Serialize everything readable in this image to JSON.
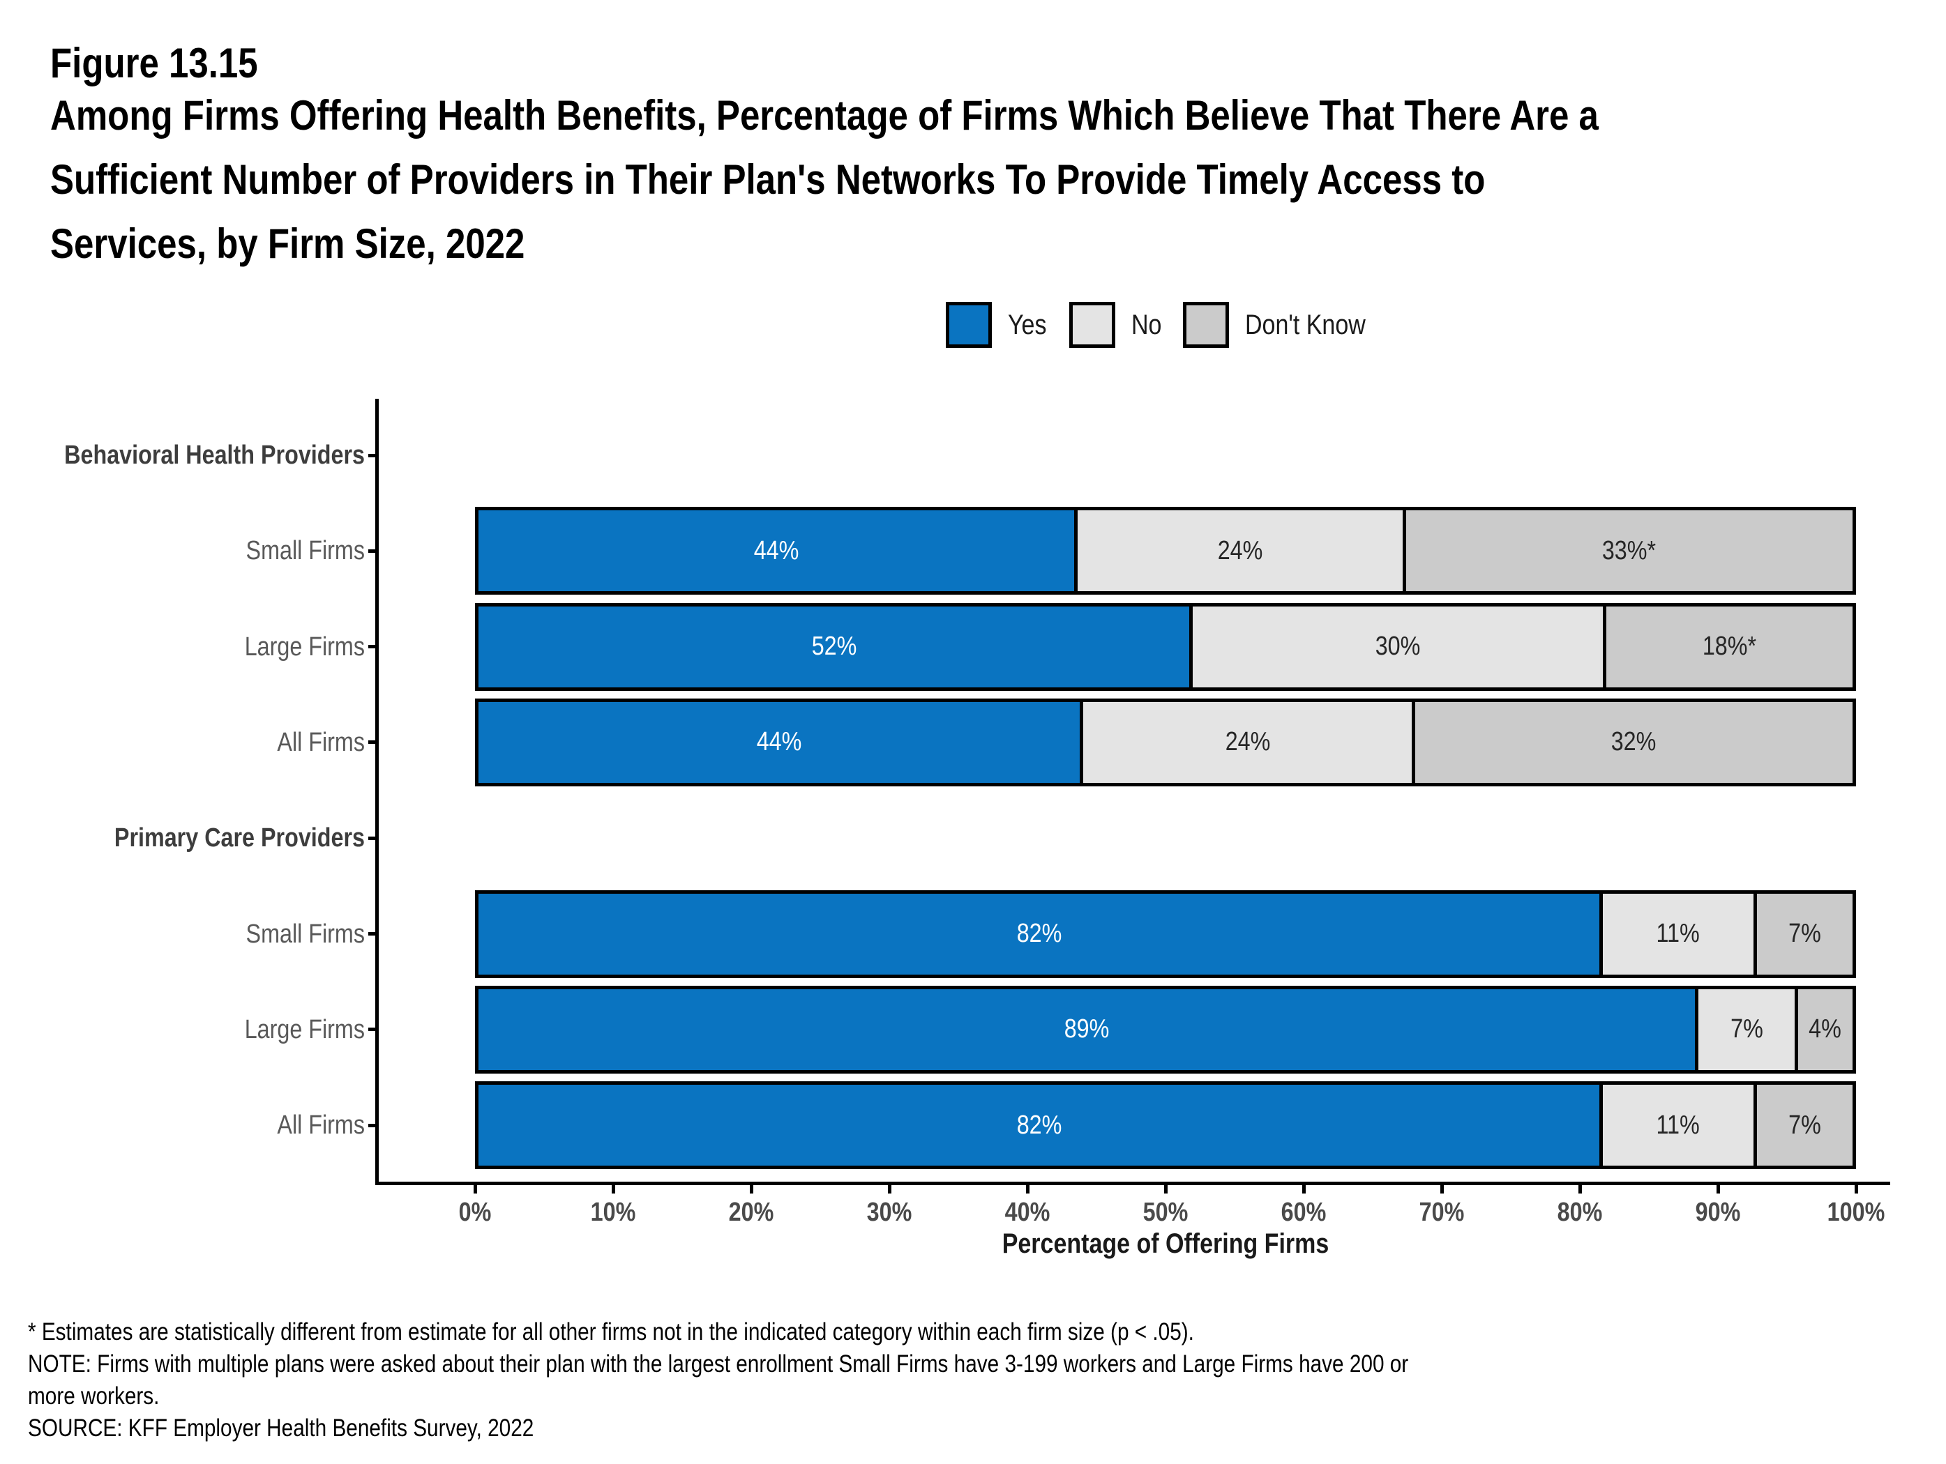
{
  "figure": {
    "label": "Figure 13.15",
    "title_lines": [
      "Among Firms Offering Health Benefits, Percentage of Firms Which Believe That There Are a",
      "Sufficient Number of Providers in Their Plan's Networks To Provide Timely Access to",
      "Services, by Firm Size, 2022"
    ]
  },
  "legend": {
    "items": [
      {
        "label": "Yes",
        "color": "#0A74C1",
        "text_color": "#ffffff"
      },
      {
        "label": "No",
        "color": "#E4E4E4",
        "text_color": "#262626"
      },
      {
        "label": "Don't Know",
        "color": "#CBCBCB",
        "text_color": "#262626"
      }
    ]
  },
  "chart_data": {
    "type": "bar",
    "orientation": "horizontal",
    "stacked": true,
    "title": "Among Firms Offering Health Benefits, Percentage of Firms Which Believe That There Are a Sufficient Number of Providers in Their Plan's Networks To Provide Timely Access to Services, by Firm Size, 2022",
    "xlabel": "Percentage of Offering Firms",
    "ylabel": "",
    "xlim": [
      0,
      100
    ],
    "grid": false,
    "legend_position": "top",
    "series_names": [
      "Yes",
      "No",
      "Don't Know"
    ],
    "x_ticks": [
      "0%",
      "10%",
      "20%",
      "30%",
      "40%",
      "50%",
      "60%",
      "70%",
      "80%",
      "90%",
      "100%"
    ],
    "rows": [
      {
        "label": "Behavioral Health Providers",
        "header": true
      },
      {
        "label": "Small Firms",
        "values": [
          44,
          24,
          33
        ],
        "value_labels": [
          "44%",
          "24%",
          "33%*"
        ]
      },
      {
        "label": "Large Firms",
        "values": [
          52,
          30,
          18
        ],
        "value_labels": [
          "52%",
          "30%",
          "18%*"
        ]
      },
      {
        "label": "All Firms",
        "values": [
          44,
          24,
          32
        ],
        "value_labels": [
          "44%",
          "24%",
          "32%"
        ]
      },
      {
        "label": "Primary Care Providers",
        "header": true
      },
      {
        "label": "Small Firms",
        "values": [
          82,
          11,
          7
        ],
        "value_labels": [
          "82%",
          "11%",
          "7%"
        ]
      },
      {
        "label": "Large Firms",
        "values": [
          89,
          7,
          4
        ],
        "value_labels": [
          "89%",
          "7%",
          "4%"
        ]
      },
      {
        "label": "All Firms",
        "values": [
          82,
          11,
          7
        ],
        "value_labels": [
          "82%",
          "11%",
          "7%"
        ]
      }
    ]
  },
  "footnotes": {
    "lines": [
      "* Estimates are statistically different from estimate for all other firms not in the indicated category within each firm size (p < .05).",
      "NOTE: Firms with multiple plans were asked about their plan with the largest enrollment Small Firms have 3-199 workers and Large Firms have 200 or",
      "more workers.",
      "SOURCE: KFF Employer Health Benefits Survey, 2022"
    ]
  }
}
